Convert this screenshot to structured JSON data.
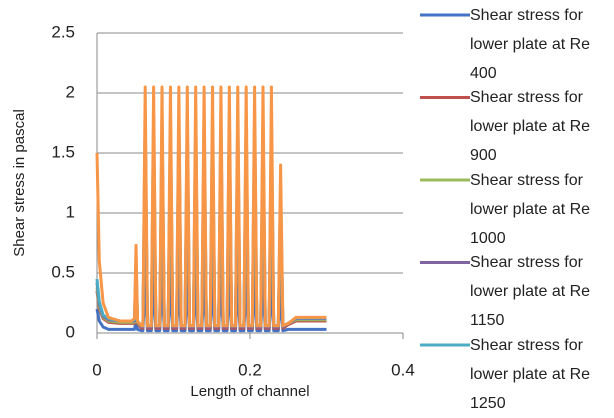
{
  "chart_data": {
    "type": "line",
    "x_label": "Length of channel",
    "y_label": "Shear stress in pascal",
    "xlim": [
      0,
      0.4
    ],
    "xticks": [
      0,
      0.2,
      0.4
    ],
    "ylim": [
      0,
      2.5
    ],
    "yticks": [
      0,
      0.5,
      1,
      1.5,
      2,
      2.5
    ],
    "grid": true,
    "legend": "right",
    "x": [
      0,
      0.003,
      0.008,
      0.015,
      0.03,
      0.045,
      0.049,
      0.051,
      0.053,
      0.058,
      0.06,
      0.063,
      0.066,
      0.071,
      0.074,
      0.077,
      0.082,
      0.085,
      0.088,
      0.093,
      0.096,
      0.099,
      0.104,
      0.107,
      0.11,
      0.115,
      0.118,
      0.121,
      0.126,
      0.129,
      0.132,
      0.137,
      0.14,
      0.143,
      0.148,
      0.151,
      0.154,
      0.159,
      0.162,
      0.165,
      0.17,
      0.173,
      0.176,
      0.181,
      0.184,
      0.187,
      0.192,
      0.195,
      0.198,
      0.203,
      0.206,
      0.209,
      0.214,
      0.217,
      0.22,
      0.225,
      0.228,
      0.231,
      0.237,
      0.24,
      0.243,
      0.25,
      0.26,
      0.3
    ],
    "series": [
      {
        "name": "Shear stress for lower plate at Re 400",
        "color": "#4472c4",
        "values": [
          0.2,
          0.1,
          0.05,
          0.03,
          0.03,
          0.03,
          0.03,
          0.1,
          0.03,
          0.02,
          0.02,
          0.4,
          0.02,
          0.02,
          0.4,
          0.02,
          0.02,
          0.4,
          0.02,
          0.02,
          0.4,
          0.02,
          0.02,
          0.4,
          0.02,
          0.02,
          0.4,
          0.02,
          0.02,
          0.4,
          0.02,
          0.02,
          0.4,
          0.02,
          0.02,
          0.4,
          0.02,
          0.02,
          0.4,
          0.02,
          0.02,
          0.4,
          0.02,
          0.02,
          0.4,
          0.02,
          0.02,
          0.4,
          0.02,
          0.02,
          0.4,
          0.02,
          0.02,
          0.4,
          0.02,
          0.02,
          0.4,
          0.02,
          0.02,
          0.3,
          0.02,
          0.03,
          0.03,
          0.03
        ]
      },
      {
        "name": "Shear stress for lower plate at Re 900",
        "color": "#c0504d",
        "values": [
          0.35,
          0.2,
          0.12,
          0.09,
          0.08,
          0.08,
          0.08,
          0.4,
          0.08,
          0.04,
          0.04,
          1.2,
          0.04,
          0.04,
          1.2,
          0.04,
          0.04,
          1.2,
          0.04,
          0.04,
          1.2,
          0.04,
          0.04,
          1.2,
          0.04,
          0.04,
          1.2,
          0.04,
          0.04,
          1.2,
          0.04,
          0.04,
          1.2,
          0.04,
          0.04,
          1.2,
          0.04,
          0.04,
          1.2,
          0.04,
          0.04,
          1.2,
          0.04,
          0.04,
          1.2,
          0.04,
          0.04,
          1.2,
          0.04,
          0.04,
          1.2,
          0.04,
          0.04,
          1.2,
          0.04,
          0.04,
          1.2,
          0.04,
          0.04,
          0.9,
          0.04,
          0.07,
          0.1,
          0.1
        ]
      },
      {
        "name": "Shear stress for lower plate at Re 1000",
        "color": "#9bbb59",
        "values": [
          0.38,
          0.22,
          0.13,
          0.1,
          0.09,
          0.09,
          0.09,
          0.45,
          0.09,
          0.05,
          0.05,
          1.4,
          0.05,
          0.05,
          1.4,
          0.05,
          0.05,
          1.4,
          0.05,
          0.05,
          1.4,
          0.05,
          0.05,
          1.4,
          0.05,
          0.05,
          1.4,
          0.05,
          0.05,
          1.4,
          0.05,
          0.05,
          1.4,
          0.05,
          0.05,
          1.4,
          0.05,
          0.05,
          1.4,
          0.05,
          0.05,
          1.4,
          0.05,
          0.05,
          1.4,
          0.05,
          0.05,
          1.4,
          0.05,
          0.05,
          1.4,
          0.05,
          0.05,
          1.4,
          0.05,
          0.05,
          1.4,
          0.05,
          0.05,
          1,
          0.05,
          0.08,
          0.11,
          0.11
        ]
      },
      {
        "name": "Shear stress for lower plate at Re 1150",
        "color": "#8064a2",
        "values": [
          0.42,
          0.24,
          0.14,
          0.11,
          0.1,
          0.1,
          0.1,
          0.55,
          0.1,
          0.05,
          0.05,
          1.6,
          0.05,
          0.05,
          1.6,
          0.05,
          0.05,
          1.6,
          0.05,
          0.05,
          1.6,
          0.05,
          0.05,
          1.6,
          0.05,
          0.05,
          1.6,
          0.05,
          0.05,
          1.6,
          0.05,
          0.05,
          1.6,
          0.05,
          0.05,
          1.6,
          0.05,
          0.05,
          1.6,
          0.05,
          0.05,
          1.6,
          0.05,
          0.05,
          1.6,
          0.05,
          0.05,
          1.6,
          0.05,
          0.05,
          1.6,
          0.05,
          0.05,
          1.6,
          0.05,
          0.05,
          1.6,
          0.05,
          0.05,
          1.1,
          0.05,
          0.08,
          0.12,
          0.12
        ]
      },
      {
        "name": "Shear stress for lower plate at Re 1250",
        "color": "#4bacc6",
        "values": [
          0.45,
          0.26,
          0.15,
          0.12,
          0.1,
          0.1,
          0.11,
          0.6,
          0.1,
          0.06,
          0.06,
          1.8,
          0.06,
          0.06,
          1.8,
          0.06,
          0.06,
          1.8,
          0.06,
          0.06,
          1.8,
          0.06,
          0.06,
          1.8,
          0.06,
          0.06,
          1.8,
          0.06,
          0.06,
          1.8,
          0.06,
          0.06,
          1.8,
          0.06,
          0.06,
          1.8,
          0.06,
          0.06,
          1.8,
          0.06,
          0.06,
          1.8,
          0.06,
          0.06,
          1.8,
          0.06,
          0.06,
          1.8,
          0.06,
          0.06,
          1.8,
          0.06,
          0.06,
          1.8,
          0.06,
          0.06,
          1.8,
          0.06,
          0.06,
          1.2,
          0.06,
          0.08,
          0.125,
          0.125
        ]
      },
      {
        "color": "#f79646",
        "values": [
          1.5,
          0.6,
          0.25,
          0.13,
          0.1,
          0.1,
          0.12,
          0.73,
          0.1,
          0.06,
          0.06,
          2.05,
          0.06,
          0.06,
          2.05,
          0.06,
          0.06,
          2.05,
          0.06,
          0.06,
          2.05,
          0.06,
          0.06,
          2.05,
          0.06,
          0.06,
          2.05,
          0.06,
          0.06,
          2.05,
          0.06,
          0.06,
          2.05,
          0.06,
          0.06,
          2.05,
          0.06,
          0.06,
          2.05,
          0.06,
          0.06,
          2.05,
          0.06,
          0.06,
          2.05,
          0.06,
          0.06,
          2.05,
          0.06,
          0.06,
          2.05,
          0.06,
          0.06,
          2.05,
          0.06,
          0.06,
          2.05,
          0.06,
          0.06,
          1.4,
          0.06,
          0.08,
          0.13,
          0.13
        ]
      }
    ]
  }
}
